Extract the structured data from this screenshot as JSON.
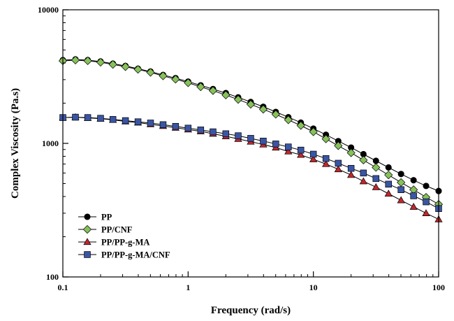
{
  "chart_data": {
    "type": "line",
    "title": "",
    "xlabel": "Frequency (rad/s)",
    "ylabel": "Complex Viscosity (Pa.s)",
    "xscale": "log",
    "yscale": "log",
    "xlim": [
      0.1,
      100
    ],
    "ylim": [
      100,
      10000
    ],
    "xticks": [
      0.1,
      1,
      10,
      100
    ],
    "xtick_labels": [
      "0.1",
      "1",
      "10",
      "100"
    ],
    "yticks": [
      100,
      1000,
      10000
    ],
    "ytick_labels": [
      "100",
      "1000",
      "10000"
    ],
    "grid": false,
    "legend_position": "bottom-left",
    "x": [
      0.1,
      0.126,
      0.158,
      0.2,
      0.251,
      0.316,
      0.398,
      0.501,
      0.631,
      0.794,
      1,
      1.26,
      1.58,
      2,
      2.51,
      3.16,
      3.98,
      5.01,
      6.31,
      7.94,
      10,
      12.6,
      15.8,
      20,
      25.1,
      31.6,
      39.8,
      50.1,
      63.1,
      79.4,
      100
    ],
    "series": [
      {
        "name": "PP",
        "marker": "circle",
        "color": "#000000",
        "values": [
          4200,
          4250,
          4200,
          4100,
          3950,
          3800,
          3620,
          3450,
          3250,
          3080,
          2900,
          2720,
          2550,
          2380,
          2210,
          2040,
          1880,
          1720,
          1570,
          1430,
          1290,
          1160,
          1040,
          930,
          830,
          740,
          660,
          590,
          530,
          480,
          440
        ]
      },
      {
        "name": "PP/CNF",
        "marker": "diamond",
        "color": "#86c15a",
        "values": [
          4150,
          4200,
          4150,
          4050,
          3900,
          3750,
          3580,
          3400,
          3200,
          3020,
          2840,
          2650,
          2480,
          2300,
          2130,
          1960,
          1800,
          1650,
          1500,
          1360,
          1220,
          1080,
          960,
          850,
          750,
          660,
          580,
          510,
          450,
          395,
          350
        ]
      },
      {
        "name": "PP/PP-g-MA",
        "marker": "triangle",
        "color": "#c0272d",
        "values": [
          1560,
          1570,
          1550,
          1530,
          1500,
          1460,
          1430,
          1390,
          1350,
          1310,
          1270,
          1230,
          1180,
          1130,
          1080,
          1030,
          980,
          930,
          870,
          820,
          760,
          700,
          640,
          580,
          520,
          470,
          420,
          375,
          335,
          300,
          270
        ]
      },
      {
        "name": "PP/PP-g-MA/CNF",
        "marker": "square",
        "color": "#3a55a4",
        "values": [
          1560,
          1570,
          1560,
          1540,
          1510,
          1480,
          1450,
          1420,
          1380,
          1340,
          1300,
          1260,
          1220,
          1180,
          1140,
          1090,
          1040,
          990,
          940,
          890,
          830,
          770,
          710,
          650,
          600,
          545,
          495,
          450,
          405,
          365,
          325
        ]
      }
    ]
  }
}
